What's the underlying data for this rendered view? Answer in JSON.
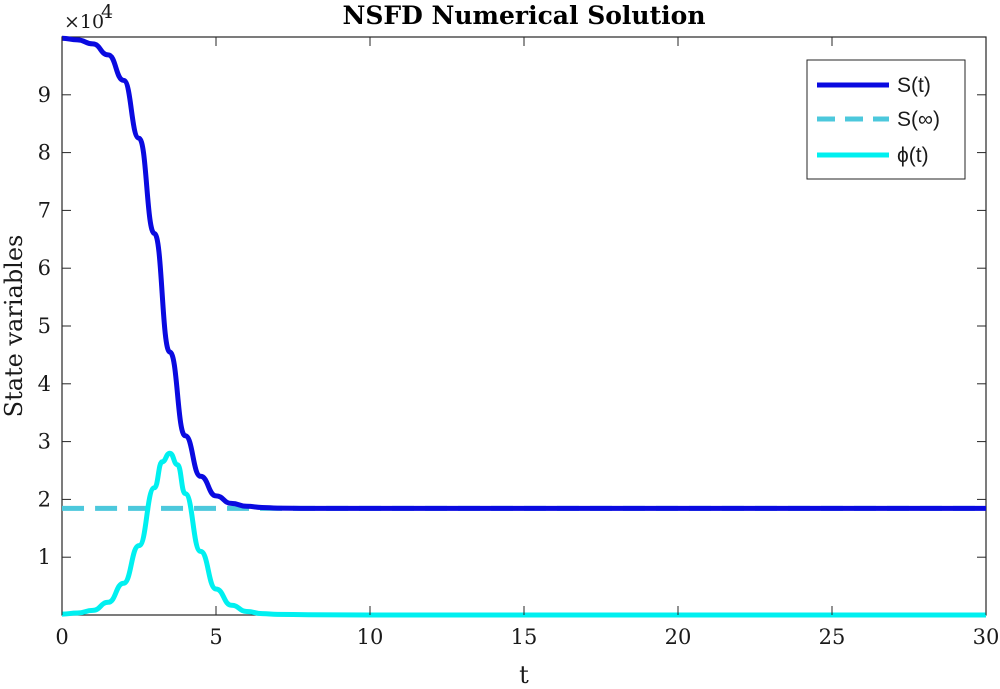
{
  "chart_data": {
    "type": "line",
    "title": "NSFD Numerical Solution",
    "xlabel": "t",
    "ylabel": "State variables",
    "y_exponent_label": "×10",
    "y_exponent_power": "4",
    "xlim": [
      0,
      30
    ],
    "ylim": [
      0,
      100000
    ],
    "y_scale_factor": 10000,
    "xticks": [
      0,
      5,
      10,
      15,
      20,
      25,
      30
    ],
    "yticks": [
      1,
      2,
      3,
      4,
      5,
      6,
      7,
      8,
      9
    ],
    "grid": false,
    "legend_position": "top-right",
    "series": [
      {
        "name": "S(t)",
        "color": "#0a0ae0",
        "style": "solid",
        "x": [
          0,
          0.5,
          1,
          1.5,
          2,
          2.5,
          3,
          3.5,
          4,
          4.5,
          5,
          5.5,
          6,
          6.5,
          7,
          8,
          10,
          15,
          20,
          25,
          30
        ],
        "y": [
          99800,
          99500,
          98800,
          96900,
          92500,
          82500,
          66000,
          45500,
          31000,
          24000,
          20600,
          19300,
          18800,
          18600,
          18500,
          18450,
          18450,
          18450,
          18450,
          18450,
          18450
        ]
      },
      {
        "name": "S(∞)",
        "color": "#4cc8dc",
        "style": "dashed",
        "x": [
          0,
          30
        ],
        "y": [
          18450,
          18450
        ]
      },
      {
        "name": "ϕ(t)",
        "color": "#00f0f0",
        "style": "solid",
        "x": [
          0,
          0.5,
          1,
          1.5,
          2,
          2.5,
          3,
          3.25,
          3.5,
          3.75,
          4,
          4.5,
          5,
          5.5,
          6,
          6.5,
          7,
          8,
          10,
          15,
          20,
          25,
          30
        ],
        "y": [
          150,
          350,
          800,
          2200,
          5500,
          12000,
          22000,
          26500,
          28000,
          26000,
          21000,
          11000,
          4500,
          1700,
          600,
          250,
          100,
          50,
          0,
          0,
          0,
          0,
          0
        ]
      }
    ]
  }
}
